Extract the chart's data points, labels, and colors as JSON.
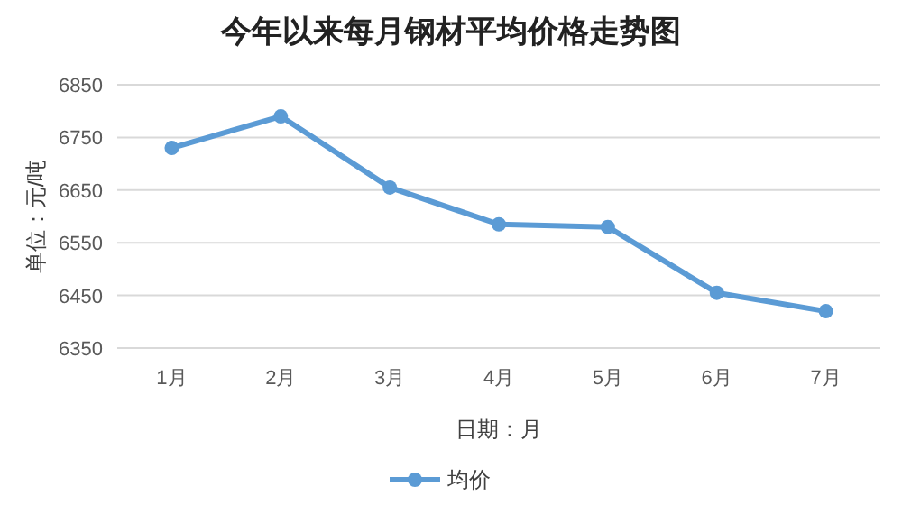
{
  "chart_data": {
    "type": "line",
    "title": "今年以来每月钢材平均价格走势图",
    "xlabel": "日期：月",
    "ylabel": "单位：元/吨",
    "categories": [
      "1月",
      "2月",
      "3月",
      "4月",
      "5月",
      "6月",
      "7月"
    ],
    "series": [
      {
        "name": "均价",
        "color": "#5b9bd5",
        "values": [
          6730,
          6790,
          6655,
          6585,
          6580,
          6455,
          6420
        ]
      }
    ],
    "ylim": [
      6350,
      6850
    ],
    "yticks": [
      6350,
      6450,
      6550,
      6650,
      6750,
      6850
    ],
    "grid": "y",
    "legend": "bottom",
    "marker": "circle",
    "line_style": "solid"
  }
}
